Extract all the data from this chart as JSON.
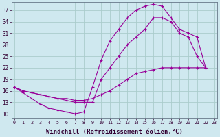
{
  "background_color": "#cfe8ef",
  "grid_color": "#aacccc",
  "line_color": "#990099",
  "xlabel": "Windchill (Refroidissement éolien,°C)",
  "xlabel_fontsize": 6.5,
  "yticks": [
    10,
    13,
    16,
    19,
    22,
    25,
    28,
    31,
    34,
    37
  ],
  "xticks": [
    0,
    1,
    2,
    3,
    4,
    5,
    6,
    7,
    8,
    9,
    10,
    11,
    12,
    13,
    14,
    15,
    16,
    17,
    18,
    19,
    20,
    21,
    22,
    23
  ],
  "xlim": [
    -0.3,
    23.3
  ],
  "ylim": [
    9.0,
    39.0
  ],
  "curve1_x": [
    0,
    1,
    2,
    3,
    4,
    5,
    6,
    7,
    8,
    9,
    10,
    11,
    12,
    13,
    14,
    15,
    16,
    17,
    18,
    19,
    20,
    21,
    22
  ],
  "curve1_y": [
    17,
    15.5,
    14,
    12.5,
    11.5,
    11,
    10.5,
    10,
    10.5,
    17,
    24,
    29,
    32,
    35,
    37,
    38,
    38.5,
    38,
    35,
    32,
    31,
    30,
    22
  ],
  "curve2_x": [
    0,
    1,
    2,
    3,
    4,
    5,
    6,
    7,
    8,
    9,
    10,
    11,
    12,
    13,
    14,
    15,
    16,
    17,
    18,
    19,
    20,
    21,
    22
  ],
  "curve2_y": [
    17,
    16,
    15.5,
    15,
    14.5,
    14,
    13.5,
    13,
    13,
    13,
    19,
    22,
    25,
    28,
    30,
    32,
    35,
    35,
    34,
    31,
    30,
    25,
    22
  ],
  "curve3_x": [
    0,
    1,
    2,
    3,
    4,
    5,
    6,
    7,
    8,
    9,
    10,
    11,
    12,
    13,
    14,
    15,
    16,
    17,
    18,
    19,
    20,
    21,
    22
  ],
  "curve3_y": [
    17,
    16,
    15.5,
    15,
    14.5,
    14,
    14,
    13.5,
    13.5,
    14,
    15,
    16,
    17.5,
    19,
    20.5,
    21,
    21.5,
    22,
    22,
    22,
    22,
    22,
    22
  ]
}
